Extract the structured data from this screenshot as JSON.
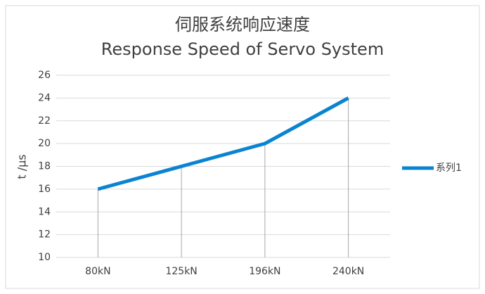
{
  "chart_data": {
    "type": "line",
    "title": "伺服系统响应速度",
    "subtitle": "Response Speed of Servo System",
    "y_label": "t /μs",
    "categories": [
      "80kN",
      "125kN",
      "196kN",
      "240kN"
    ],
    "series": [
      {
        "name": "系列1",
        "color": "#0a84d0",
        "values": [
          16,
          18,
          20,
          24
        ]
      }
    ],
    "ylim": [
      10,
      26
    ],
    "yticks": [
      10,
      12,
      14,
      16,
      18,
      20,
      22,
      24,
      26
    ],
    "grid": true,
    "drop_lines": true,
    "legend": "right"
  }
}
